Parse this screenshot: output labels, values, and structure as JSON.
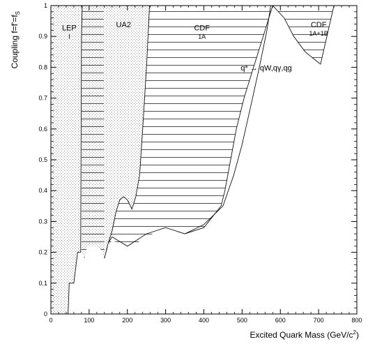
{
  "chart_data": {
    "type": "area",
    "title": "",
    "xlabel_main": "Excited Quark Mass (GeV/c",
    "xlabel_sup": "2",
    "xlabel_end": ")",
    "ylabel_main": "Coupling f=f'=f",
    "ylabel_sub": "S",
    "xlim": [
      0,
      800
    ],
    "ylim": [
      0,
      1
    ],
    "grid": false,
    "x_ticks": [
      {
        "value": 0,
        "label": "0"
      },
      {
        "value": 100,
        "label": "100"
      },
      {
        "value": 200,
        "label": "200"
      },
      {
        "value": 300,
        "label": "300"
      },
      {
        "value": 400,
        "label": "400"
      },
      {
        "value": 500,
        "label": "500"
      },
      {
        "value": 600,
        "label": "600"
      },
      {
        "value": 700,
        "label": "700"
      },
      {
        "value": 800,
        "label": "800"
      }
    ],
    "y_ticks": [
      {
        "value": 0,
        "label": "0"
      },
      {
        "value": 0.1,
        "label": "0.1"
      },
      {
        "value": 0.2,
        "label": "0.2"
      },
      {
        "value": 0.3,
        "label": "0.3"
      },
      {
        "value": 0.4,
        "label": "0.4"
      },
      {
        "value": 0.5,
        "label": "0.5"
      },
      {
        "value": 0.6,
        "label": "0.6"
      },
      {
        "value": 0.7,
        "label": "0.7"
      },
      {
        "value": 0.8,
        "label": "0.8"
      },
      {
        "value": 0.9,
        "label": "0.9"
      },
      {
        "value": 1,
        "label": "1"
      }
    ],
    "process_label": "q* → qW,qγ,qg",
    "regions": [
      {
        "id": "lep",
        "label_lines": [
          "LEP",
          "I"
        ],
        "label_at": {
          "x": 48,
          "y": 0.92
        },
        "fill": "stipple",
        "boundary": [
          [
            45,
            0
          ],
          [
            48,
            0.1
          ],
          [
            60,
            0.1
          ],
          [
            70,
            0.2
          ],
          [
            78,
            0.2
          ],
          [
            80,
            0.9
          ],
          [
            82,
            1
          ],
          [
            0,
            1
          ],
          [
            0,
            0
          ]
        ]
      },
      {
        "id": "ua2",
        "label_lines": [
          "UA2"
        ],
        "label_at": {
          "x": 190,
          "y": 0.93
        },
        "fill": "stipple",
        "boundary": [
          [
            140,
            0.18
          ],
          [
            148,
            0.21
          ],
          [
            155,
            0.24
          ],
          [
            165,
            0.27
          ],
          [
            170,
            0.33
          ],
          [
            180,
            0.37
          ],
          [
            190,
            0.38
          ],
          [
            200,
            0.37
          ],
          [
            212,
            0.34
          ],
          [
            222,
            0.38
          ],
          [
            232,
            0.45
          ],
          [
            240,
            0.6
          ],
          [
            258,
            1
          ],
          [
            80,
            1
          ],
          [
            82,
            0.9
          ],
          [
            80,
            0.2
          ],
          [
            88,
            0.18
          ],
          [
            95,
            0.22
          ],
          [
            120,
            0.22
          ],
          [
            130,
            0.21
          ],
          [
            140,
            0.18
          ]
        ]
      },
      {
        "id": "cdf1a",
        "label_lines": [
          "CDF",
          "1A"
        ],
        "label_at": {
          "x": 395,
          "y": 0.92
        },
        "fill": "hatch",
        "boundary": [
          [
            80,
            0.2
          ],
          [
            88,
            0.18
          ],
          [
            95,
            0.22
          ],
          [
            120,
            0.22
          ],
          [
            130,
            0.21
          ],
          [
            140,
            0.18
          ],
          [
            148,
            0.21
          ],
          [
            160,
            0.24
          ],
          [
            200,
            0.21
          ],
          [
            250,
            0.25
          ],
          [
            300,
            0.28
          ],
          [
            350,
            0.26
          ],
          [
            400,
            0.28
          ],
          [
            445,
            0.35
          ],
          [
            455,
            0.4
          ],
          [
            470,
            0.5
          ],
          [
            485,
            0.6
          ],
          [
            505,
            0.7
          ],
          [
            530,
            0.8
          ],
          [
            555,
            0.9
          ],
          [
            580,
            1
          ],
          [
            500,
            1
          ],
          [
            258,
            1
          ],
          [
            240,
            0.6
          ],
          [
            232,
            0.45
          ],
          [
            222,
            0.38
          ],
          [
            212,
            0.34
          ],
          [
            200,
            0.37
          ],
          [
            190,
            0.38
          ],
          [
            180,
            0.37
          ],
          [
            170,
            0.33
          ],
          [
            160,
            0.27
          ],
          [
            150,
            0.23
          ],
          [
            140,
            0.18
          ],
          [
            138,
            1
          ],
          [
            82,
            1
          ],
          [
            80,
            0.9
          ]
        ]
      },
      {
        "id": "cdf1b",
        "label_lines": [
          "CDF",
          "1A+1B"
        ],
        "label_at": {
          "x": 700,
          "y": 0.93
        },
        "fill": "hatch",
        "boundary": [
          [
            580,
            1
          ],
          [
            610,
            0.96
          ],
          [
            635,
            0.9
          ],
          [
            665,
            0.85
          ],
          [
            695,
            0.82
          ],
          [
            705,
            0.81
          ],
          [
            740,
            1
          ]
        ]
      }
    ],
    "curves": [
      {
        "id": "cdf-upper-edge",
        "points": [
          [
            350,
            0.26
          ],
          [
            400,
            0.28
          ],
          [
            445,
            0.35
          ],
          [
            455,
            0.4
          ],
          [
            470,
            0.5
          ],
          [
            485,
            0.6
          ],
          [
            505,
            0.7
          ],
          [
            530,
            0.8
          ],
          [
            555,
            0.9
          ],
          [
            580,
            1
          ]
        ]
      },
      {
        "id": "cdf-lower-edge",
        "points": [
          [
            140,
            0.18
          ],
          [
            150,
            0.23
          ],
          [
            160,
            0.25
          ],
          [
            200,
            0.22
          ],
          [
            250,
            0.26
          ],
          [
            300,
            0.28
          ],
          [
            350,
            0.26
          ],
          [
            400,
            0.29
          ],
          [
            450,
            0.35
          ],
          [
            478,
            0.45
          ],
          [
            500,
            0.55
          ],
          [
            520,
            0.66
          ],
          [
            545,
            0.8
          ],
          [
            565,
            0.92
          ],
          [
            575,
            1
          ]
        ]
      },
      {
        "id": "ua2-right-edge",
        "points": [
          [
            150,
            0.23
          ],
          [
            160,
            0.27
          ],
          [
            170,
            0.33
          ],
          [
            180,
            0.37
          ],
          [
            190,
            0.38
          ],
          [
            200,
            0.37
          ],
          [
            212,
            0.34
          ],
          [
            222,
            0.38
          ],
          [
            232,
            0.45
          ],
          [
            240,
            0.6
          ],
          [
            250,
            0.8
          ],
          [
            258,
            1
          ]
        ]
      },
      {
        "id": "lep-right-edge",
        "points": [
          [
            45,
            0
          ],
          [
            48,
            0.1
          ],
          [
            60,
            0.1
          ],
          [
            70,
            0.2
          ],
          [
            78,
            0.2
          ],
          [
            80,
            0.9
          ],
          [
            82,
            1
          ]
        ]
      },
      {
        "id": "cdf1b-edge",
        "points": [
          [
            580,
            1
          ],
          [
            610,
            0.96
          ],
          [
            635,
            0.9
          ],
          [
            665,
            0.85
          ],
          [
            695,
            0.82
          ],
          [
            705,
            0.81
          ],
          [
            740,
            1
          ]
        ]
      }
    ]
  }
}
